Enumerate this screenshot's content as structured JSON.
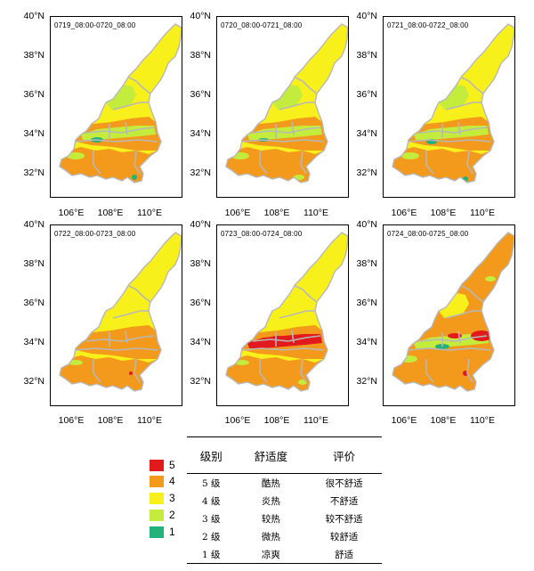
{
  "colors": {
    "level_5": "#e31a1c",
    "level_4": "#f39a1d",
    "level_3": "#f8f01a",
    "level_2": "#c3ec3c",
    "level_1": "#23b37a",
    "boundary": "#b8b8b8"
  },
  "axes": {
    "lat_labels": [
      "40°N",
      "38°N",
      "36°N",
      "34°N",
      "32°N"
    ],
    "lon_labels": [
      "106°E",
      "108°E",
      "110°E"
    ]
  },
  "panels": [
    {
      "title": "0719_08:00-0720_08:00",
      "scheme": "a"
    },
    {
      "title": "0720_08:00-0721_08:00",
      "scheme": "b"
    },
    {
      "title": "0721_08:00-0722_08:00",
      "scheme": "c"
    },
    {
      "title": "0722_08:00-0723_08:00",
      "scheme": "d"
    },
    {
      "title": "0723_08:00-0724_08:00",
      "scheme": "e"
    },
    {
      "title": "0724_08:00-0725_08:00",
      "scheme": "f"
    }
  ],
  "legend": [
    {
      "level": "5",
      "color": "#e31a1c"
    },
    {
      "level": "4",
      "color": "#f39a1d"
    },
    {
      "level": "3",
      "color": "#f8f01a"
    },
    {
      "level": "2",
      "color": "#c3ec3c"
    },
    {
      "level": "1",
      "color": "#23b37a"
    }
  ],
  "grade_table": {
    "headers": [
      "级别",
      "舒适度",
      "评价"
    ],
    "rows": [
      [
        "5 级",
        "酷热",
        "很不舒适"
      ],
      [
        "4 级",
        "炎热",
        "不舒适"
      ],
      [
        "3 级",
        "较热",
        "较不舒适"
      ],
      [
        "2 级",
        "微热",
        "较舒适"
      ],
      [
        "1 级",
        "凉爽",
        "舒适"
      ]
    ]
  }
}
